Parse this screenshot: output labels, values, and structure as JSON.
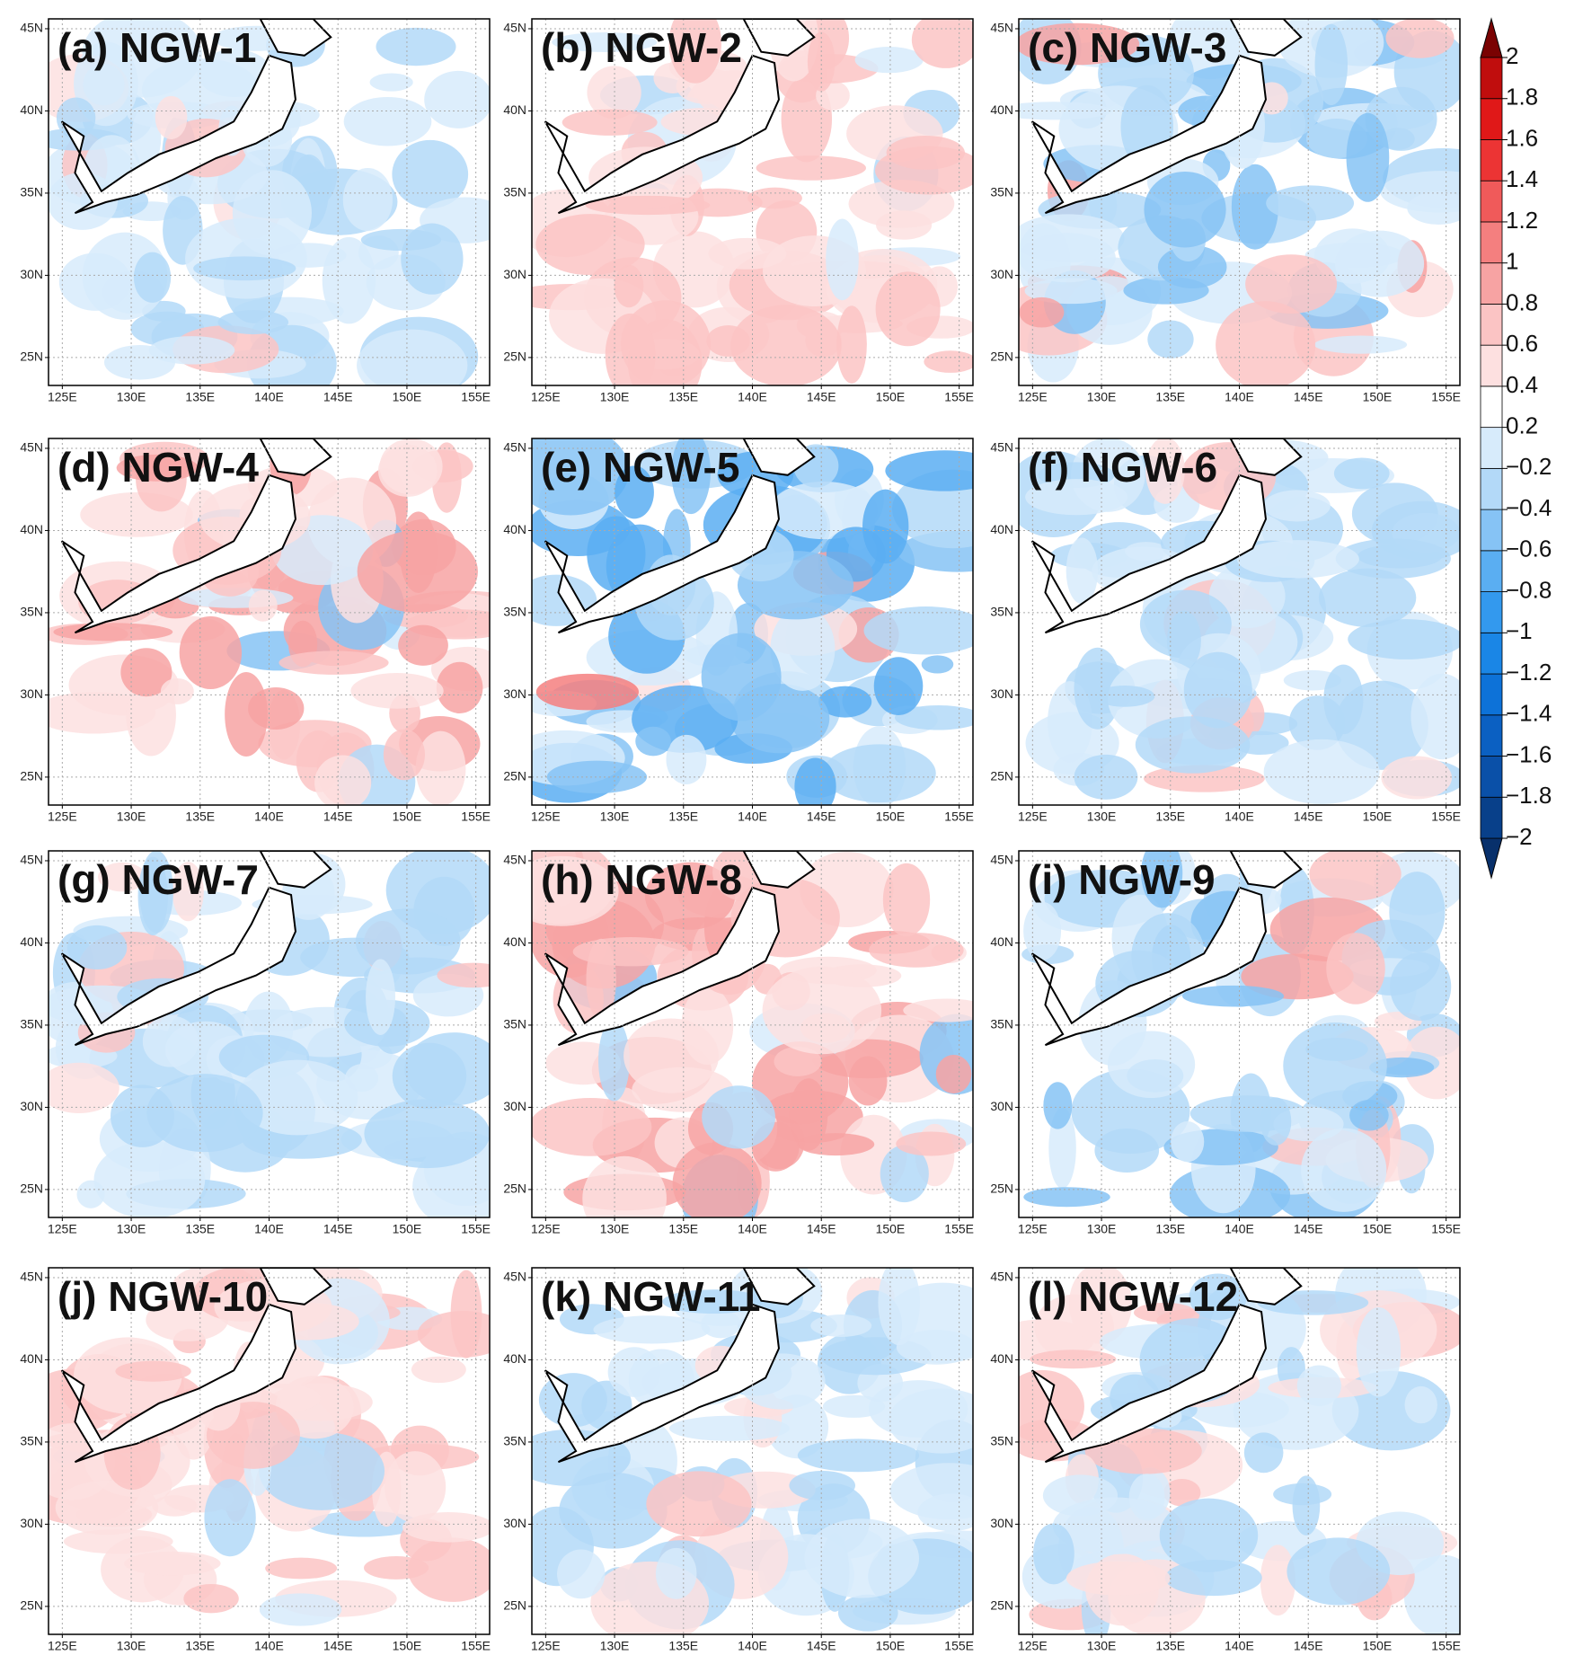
{
  "panels": [
    {
      "label": "(a) NGW-1"
    },
    {
      "label": "(b) NGW-2"
    },
    {
      "label": "(c) NGW-3"
    },
    {
      "label": "(d) NGW-4"
    },
    {
      "label": "(e) NGW-5"
    },
    {
      "label": "(f) NGW-6"
    },
    {
      "label": "(g) NGW-7"
    },
    {
      "label": "(h) NGW-8"
    },
    {
      "label": "(i) NGW-9"
    },
    {
      "label": "(j) NGW-10"
    },
    {
      "label": "(k) NGW-11"
    },
    {
      "label": "(l) NGW-12"
    }
  ],
  "map": {
    "xlim": [
      124,
      156
    ],
    "ylim": [
      23.3,
      45.6
    ],
    "lon_ticks": [
      {
        "value": 125,
        "label": "125E"
      },
      {
        "value": 130,
        "label": "130E"
      },
      {
        "value": 135,
        "label": "135E"
      },
      {
        "value": 140,
        "label": "140E"
      },
      {
        "value": 145,
        "label": "145E"
      },
      {
        "value": 150,
        "label": "150E"
      },
      {
        "value": 155,
        "label": "155E"
      }
    ],
    "lat_ticks": [
      {
        "value": 25,
        "label": "25N"
      },
      {
        "value": 30,
        "label": "30N"
      },
      {
        "value": 35,
        "label": "35N"
      },
      {
        "value": 40,
        "label": "40N"
      },
      {
        "value": 45,
        "label": "45N"
      }
    ]
  },
  "colorbar": {
    "levels": [
      {
        "value": -2,
        "label": "−2"
      },
      {
        "value": -1.8,
        "label": "−1.8"
      },
      {
        "value": -1.6,
        "label": "−1.6"
      },
      {
        "value": -1.4,
        "label": "−1.4"
      },
      {
        "value": -1.2,
        "label": "−1.2"
      },
      {
        "value": -1,
        "label": "−1"
      },
      {
        "value": -0.8,
        "label": "−0.8"
      },
      {
        "value": -0.6,
        "label": "−0.6"
      },
      {
        "value": -0.4,
        "label": "−0.4"
      },
      {
        "value": -0.2,
        "label": "−0.2"
      },
      0.2,
      0.4,
      0.6,
      0.8,
      1,
      1.2,
      1.4,
      1.6,
      1.8,
      2
    ],
    "colors": [
      "#08306b",
      "#08408a",
      "#0a50a8",
      "#0b60c2",
      "#0d72d8",
      "#1a86e6",
      "#3399ee",
      "#5aaef2",
      "#86c3f5",
      "#b3d9f8",
      "#d7ebfb",
      "#ffffff",
      "#fde0e0",
      "#fbc4c4",
      "#f7a3a3",
      "#f47f7f",
      "#f05a5a",
      "#ec3434",
      "#e01818",
      "#c00d0d",
      "#9c0606",
      "#7a0202"
    ]
  }
}
